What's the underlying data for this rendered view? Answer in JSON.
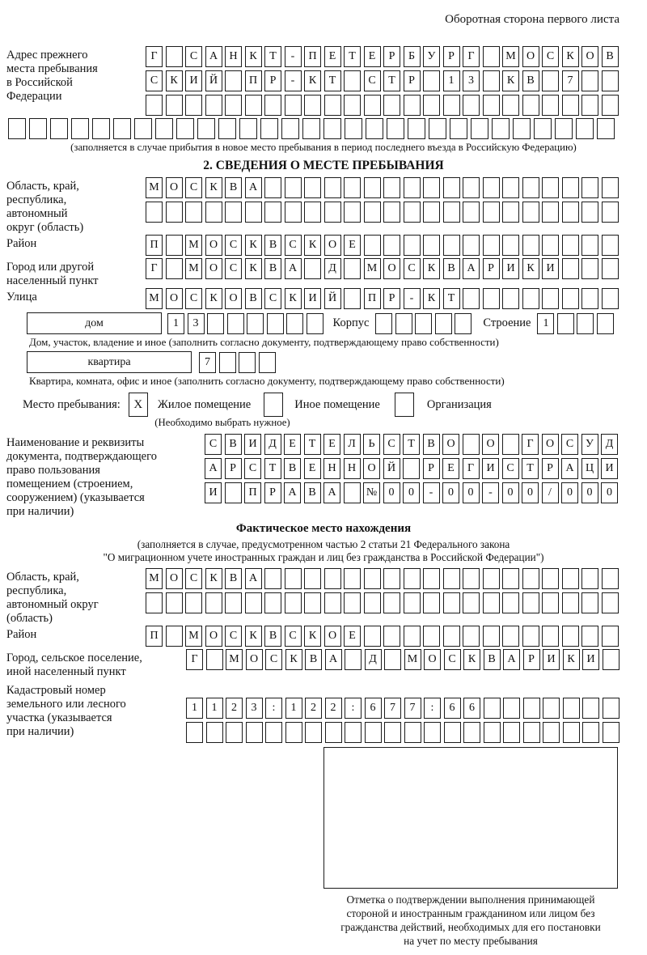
{
  "header": {
    "note": "Оборотная сторона первого листа"
  },
  "prev_address": {
    "label_lines": [
      "Адрес прежнего",
      "места пребывания",
      "в Российской",
      "Федерации"
    ],
    "row1": "Г САНКТ-ПЕТЕРБУРГ МОСКОВ",
    "row2": "СКИЙ ПР-КТ СТР 13 КВ 7",
    "row3": "",
    "row4": "",
    "note": "(заполняется в случае прибытия в новое место пребывания в период последнего въезда в Российскую Федерацию)"
  },
  "section2": {
    "title": "2. СВЕДЕНИЯ О МЕСТЕ ПРЕБЫВАНИЯ",
    "region": {
      "label_lines": [
        "Область, край,",
        "республика,",
        "автономный",
        "округ (область)"
      ],
      "row1": "МОСКВА",
      "row2": ""
    },
    "district": {
      "label": "Район",
      "row": "П МОСКВСКОЕ"
    },
    "city": {
      "label_lines": [
        "Город или другой",
        "населенный пункт"
      ],
      "row": "Г МОСКВА Д МОСКВАРИКИ"
    },
    "street": {
      "label": "Улица",
      "row": "МОСКОВСКИЙ ПР-КТ"
    },
    "house": {
      "box_label": "дом",
      "cells": "13",
      "korpus_label": "Корпус",
      "korpus_cells": "",
      "stroenie_label": "Строение",
      "stroenie_cells": "1",
      "note": "Дом, участок, владение и иное (заполнить согласно документу, подтверждающему право собственности)"
    },
    "apartment": {
      "box_label": "квартира",
      "cells": "7",
      "note": "Квартира, комната, офис и иное (заполнить согласно документу, подтверждающему право собственности)"
    },
    "stay_type": {
      "label": "Место пребывания:",
      "options": [
        {
          "label": "Жилое помещение",
          "checked": "X"
        },
        {
          "label": "Иное помещение",
          "checked": ""
        },
        {
          "label": "Организация",
          "checked": ""
        }
      ],
      "note": "(Необходимо выбрать нужное)"
    },
    "document": {
      "label_lines": [
        "Наименование и реквизиты",
        "документа, подтверждающего",
        "право пользования",
        "помещением (строением,",
        "сооружением) (указывается",
        "при наличии)"
      ],
      "row1": "СВИДЕТЕЛЬСТВО О ГОСУД",
      "row2": "АРСТВЕННОЙ РЕГИСТРАЦИ",
      "row3": "И ПРАВА №00-00-00/000"
    }
  },
  "actual_location": {
    "title": "Фактическое место нахождения",
    "note_line1": "(заполняется в случае, предусмотренном частью 2 статьи 21 Федерального закона",
    "note_line2": "\"О миграционном учете иностранных граждан и лиц без гражданства в Российской Федерации\")",
    "region": {
      "label_lines": [
        "Область, край,",
        "республика,",
        "автономный округ",
        "(область)"
      ],
      "row1": "МОСКВА",
      "row2": ""
    },
    "district": {
      "label": "Район",
      "row": "П МОСКВСКОЕ"
    },
    "city": {
      "label_lines": [
        "Город, сельское поселение,",
        "иной населенный пункт"
      ],
      "row": "Г МОСКВА Д МОСКВАРИКИ"
    },
    "cadastral": {
      "label_lines": [
        "Кадастровый номер",
        "земельного или лесного",
        "участка (указывается",
        "при наличии)"
      ],
      "row1": "1123:122:677:66",
      "row2": ""
    }
  },
  "confirmation": {
    "caption_lines": [
      "Отметка о подтверждении выполнения принимающей",
      "стороной и иностранным гражданином или лицом без",
      "гражданства действий, необходимых для его постановки",
      "на учет по месту пребывания"
    ]
  }
}
